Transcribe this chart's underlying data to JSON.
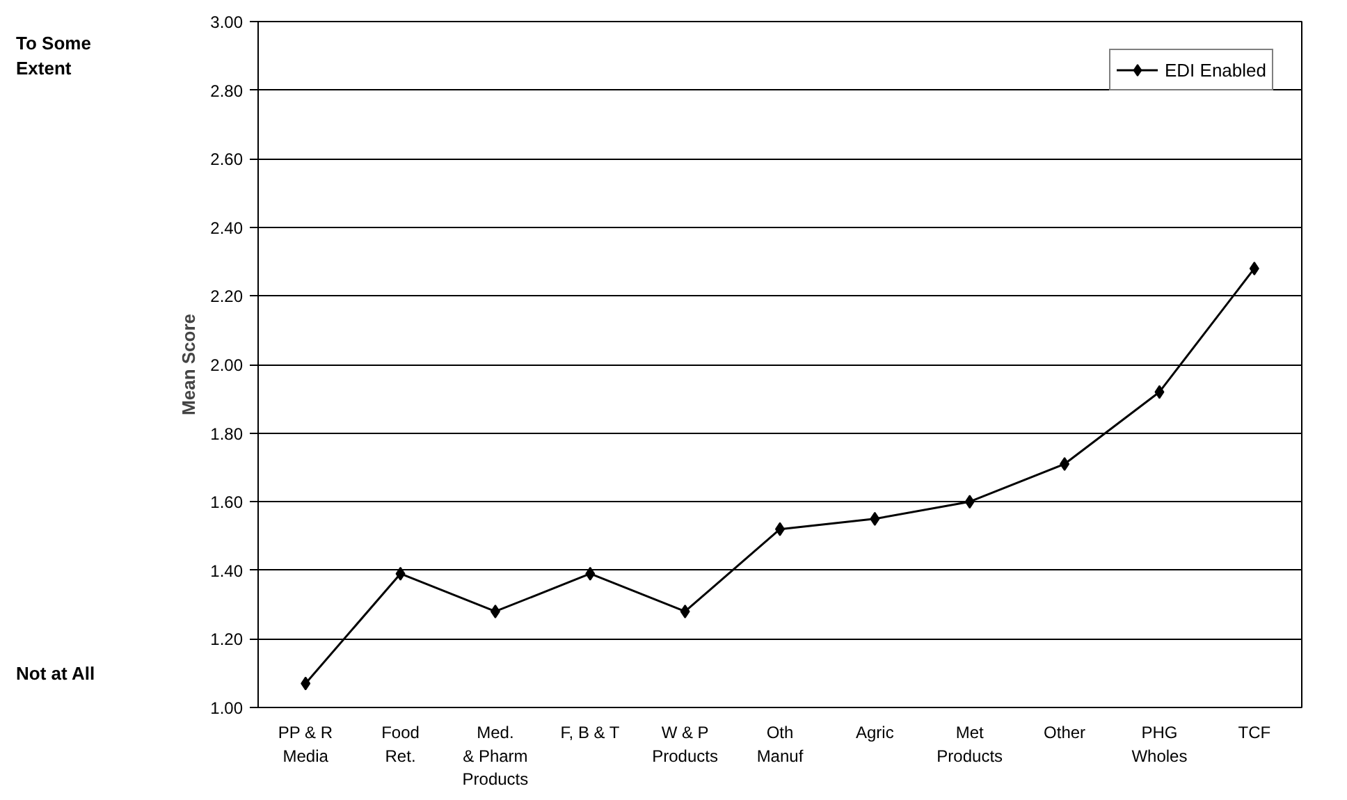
{
  "chart_data": {
    "type": "line",
    "ylabel": "Mean Score",
    "categories": [
      "PP & R\nMedia",
      "Food\nRet.",
      "Med.\n& Pharm\nProducts",
      "F, B & T",
      "W & P\nProducts",
      "Oth\nManuf",
      "Agric",
      "Met\nProducts",
      "Other",
      "PHG\nWholes",
      "TCF"
    ],
    "series": [
      {
        "name": "EDI Enabled",
        "color": "#000000",
        "values": [
          1.07,
          1.39,
          1.28,
          1.39,
          1.28,
          1.52,
          1.55,
          1.6,
          1.71,
          1.92,
          2.28
        ]
      }
    ],
    "ylim": [
      1,
      3
    ],
    "yticks": [
      {
        "value": 1,
        "label": "1.00"
      },
      {
        "value": 1.2,
        "label": "1.20"
      },
      {
        "value": 1.4,
        "label": "1.40"
      },
      {
        "value": 1.6,
        "label": "1.60"
      },
      {
        "value": 1.8,
        "label": "1.80"
      },
      {
        "value": 2,
        "label": "2.00"
      },
      {
        "value": 2.2,
        "label": "2.20"
      },
      {
        "value": 2.4,
        "label": "2.40"
      },
      {
        "value": 2.6,
        "label": "2.60"
      },
      {
        "value": 2.8,
        "label": "2.80"
      },
      {
        "value": 3,
        "label": "3.00"
      }
    ],
    "annotations": [
      "To Some\nExtent",
      "Not at All"
    ],
    "grid": "y",
    "legend": "top right",
    "marker": "diamond",
    "line_style": "solid"
  }
}
